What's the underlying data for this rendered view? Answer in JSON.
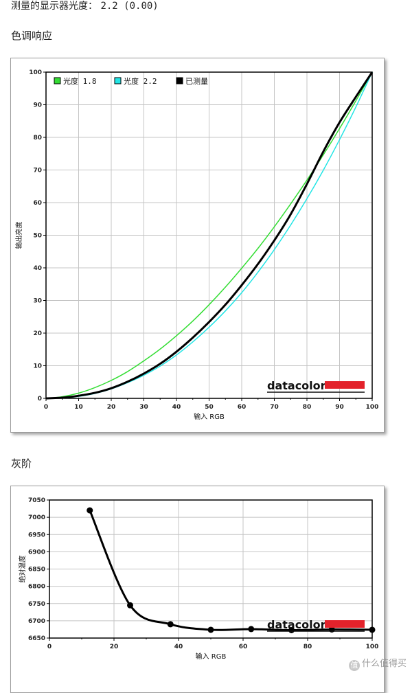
{
  "header": {
    "label": "测量的显示器光度：",
    "value": "2.2 (0.00)"
  },
  "sections": {
    "tone_title": "色调响应",
    "gray_title": "灰阶"
  },
  "brand": {
    "logo_text": "datacolor",
    "bar_color": "#e3222b"
  },
  "watermark": "什么值得买",
  "chart_data": [
    {
      "type": "line",
      "xlabel": "输入 RGB",
      "ylabel": "输出亮度",
      "xlim": [
        0,
        100
      ],
      "ylim": [
        0,
        100
      ],
      "xticks": [
        "0",
        "10",
        "20",
        "30",
        "40",
        "50",
        "60",
        "70",
        "80",
        "90",
        "100"
      ],
      "yticks": [
        "0",
        "10",
        "20",
        "30",
        "40",
        "50",
        "60",
        "70",
        "80",
        "90",
        "100"
      ],
      "grid": true,
      "legend_position": "top-left",
      "x": [
        0,
        5,
        10,
        15,
        20,
        25,
        30,
        35,
        40,
        45,
        50,
        55,
        60,
        65,
        70,
        75,
        80,
        85,
        90,
        95,
        100
      ],
      "series": [
        {
          "name": "光度 1.8",
          "color": "#33dd33",
          "values": [
            0,
            0.5,
            1.6,
            3.3,
            5.5,
            8.2,
            11.5,
            15.1,
            19.2,
            23.7,
            28.7,
            34.1,
            39.9,
            46.0,
            52.6,
            59.6,
            66.9,
            74.6,
            82.7,
            91.2,
            100
          ]
        },
        {
          "name": "光度 2.2",
          "color": "#22e5e5",
          "values": [
            0,
            0.1,
            0.6,
            1.5,
            2.9,
            4.8,
            7.1,
            9.9,
            13.3,
            17.3,
            21.8,
            26.8,
            32.4,
            38.7,
            45.6,
            53.1,
            61.2,
            69.9,
            79.3,
            89.3,
            100
          ]
        },
        {
          "name": "已测量",
          "color": "#000000",
          "values": [
            0,
            0.2,
            0.8,
            1.7,
            3.1,
            5.1,
            7.6,
            10.6,
            14.3,
            18.6,
            23.4,
            28.7,
            34.7,
            41.2,
            48.4,
            56.4,
            65.7,
            75.6,
            84.6,
            92.4,
            100
          ]
        }
      ]
    },
    {
      "type": "line",
      "xlabel": "输入 RGB",
      "ylabel": "绝对温度",
      "xlim": [
        0,
        100
      ],
      "ylim": [
        6650,
        7050
      ],
      "xticks": [
        "0",
        "20",
        "40",
        "60",
        "80",
        "100"
      ],
      "yticks": [
        "6650",
        "6700",
        "6750",
        "6800",
        "6850",
        "6900",
        "6950",
        "7000",
        "7050"
      ],
      "grid": true,
      "x": [
        12.5,
        25,
        37.5,
        50,
        62.5,
        75,
        87.5,
        100
      ],
      "series": [
        {
          "name": "",
          "color": "#000000",
          "values": [
            7020,
            6745,
            6690,
            6674,
            6676,
            6673,
            6675,
            6674
          ]
        }
      ]
    }
  ]
}
